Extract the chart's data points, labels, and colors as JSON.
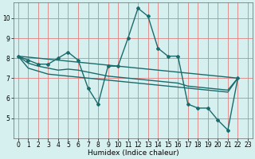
{
  "title": "",
  "xlabel": "Humidex (Indice chaleur)",
  "ylabel": "",
  "xlim": [
    -0.5,
    23.5
  ],
  "ylim": [
    4.0,
    10.8
  ],
  "yticks": [
    5,
    6,
    7,
    8,
    9,
    10
  ],
  "xticks": [
    0,
    1,
    2,
    3,
    4,
    5,
    6,
    7,
    8,
    9,
    10,
    11,
    12,
    13,
    14,
    15,
    16,
    17,
    18,
    19,
    20,
    21,
    22,
    23
  ],
  "bg_color": "#d6f0f0",
  "grid_color": "#e08080",
  "line_color": "#1a6b6b",
  "line_width": 1.0,
  "marker": "D",
  "marker_size": 2.0,
  "lines": [
    [
      8.1,
      7.9,
      7.7,
      7.7,
      8.0,
      8.3,
      7.9,
      6.5,
      5.7,
      7.6,
      7.6,
      9.0,
      10.5,
      10.1,
      8.5,
      8.1,
      8.1,
      5.7,
      5.5,
      5.5,
      4.9,
      4.4,
      7.0
    ],
    [
      8.1,
      7.6,
      7.0
    ],
    [
      8.1,
      7.5,
      7.35,
      7.2,
      7.15,
      7.1,
      7.05,
      7.0,
      6.95,
      6.9,
      6.85,
      6.8,
      6.75,
      6.7,
      6.65,
      6.6,
      6.55,
      6.5,
      6.45,
      6.4,
      6.35,
      6.3,
      7.0
    ],
    [
      8.1,
      7.75,
      7.6,
      7.5,
      7.4,
      7.45,
      7.4,
      7.3,
      7.2,
      7.1,
      7.05,
      7.0,
      6.95,
      6.9,
      6.85,
      6.8,
      6.75,
      6.6,
      6.55,
      6.5,
      6.45,
      6.4,
      7.0
    ]
  ],
  "line1_x": [
    0,
    10,
    22
  ],
  "xlabel_fontsize": 6.5,
  "tick_fontsize": 5.5
}
